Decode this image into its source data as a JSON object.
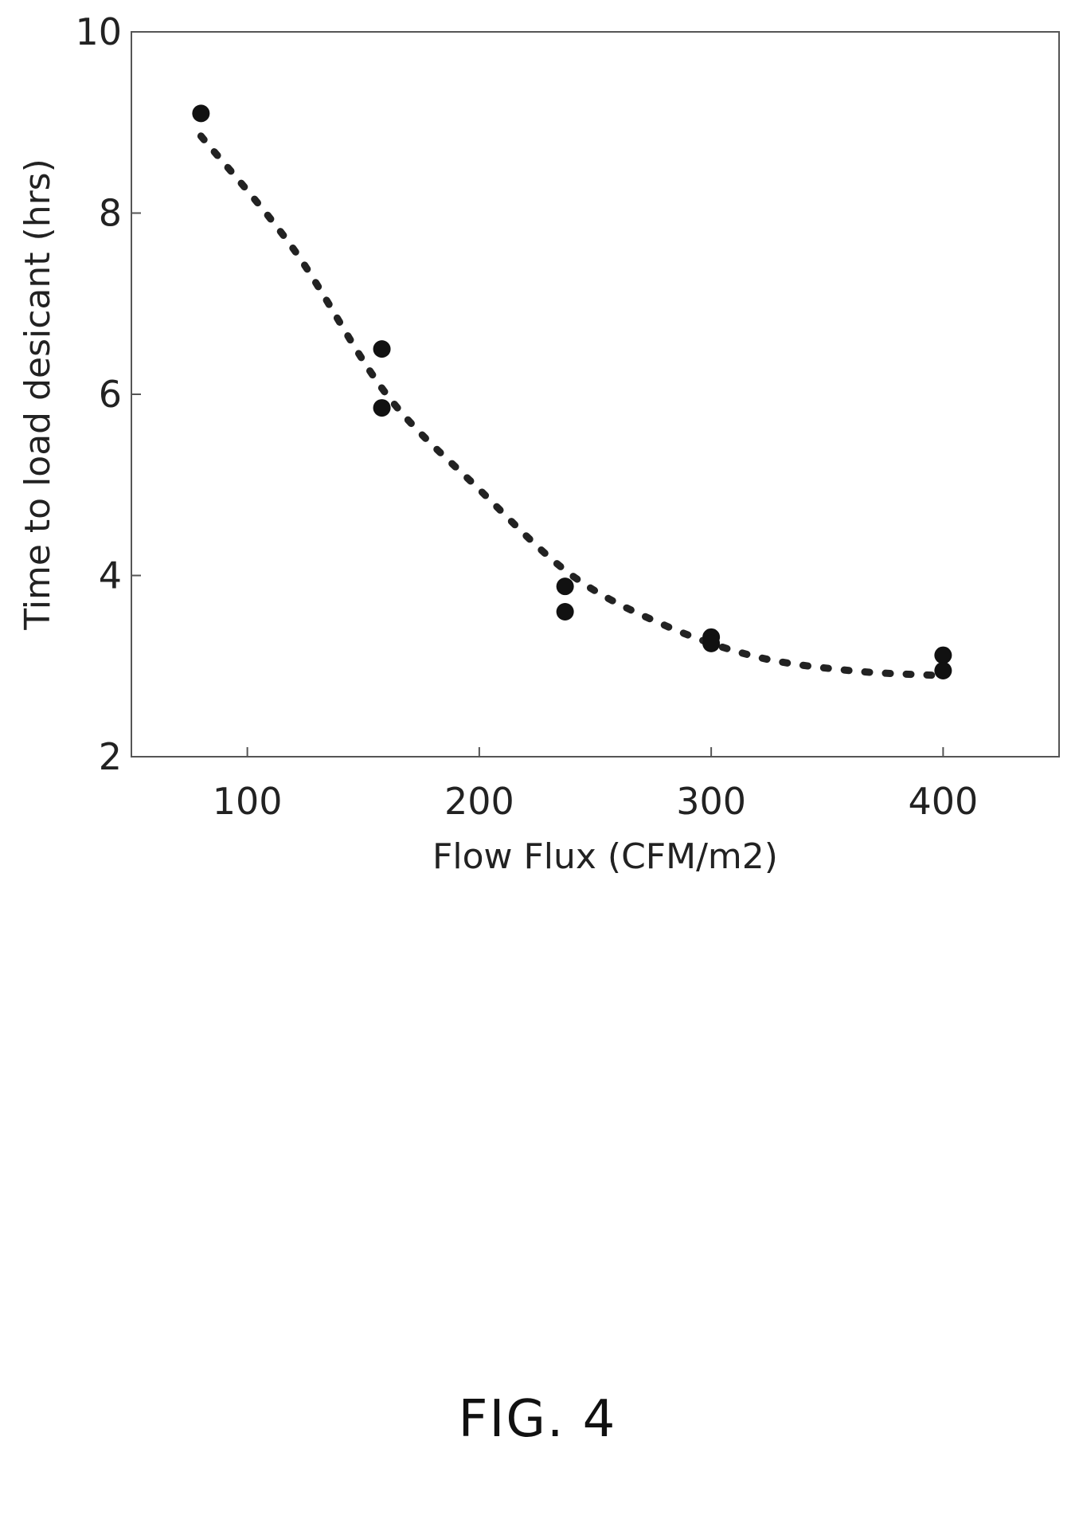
{
  "figure": {
    "caption": "FIG. 4"
  },
  "chart_data": {
    "type": "scatter",
    "title": "",
    "xlabel": "Flow Flux (CFM/m2)",
    "ylabel": "Time to load desicant (hrs)",
    "xlim": [
      50,
      450
    ],
    "ylim": [
      2,
      10
    ],
    "xticks": [
      100,
      200,
      300,
      400
    ],
    "yticks": [
      2,
      4,
      6,
      8,
      10
    ],
    "grid": false,
    "series": [
      {
        "points": [
          {
            "x": 80,
            "y": 9.1
          },
          {
            "x": 158,
            "y": 6.5
          },
          {
            "x": 158,
            "y": 5.85
          },
          {
            "x": 237,
            "y": 3.88
          },
          {
            "x": 237,
            "y": 3.6
          },
          {
            "x": 300,
            "y": 3.32
          },
          {
            "x": 300,
            "y": 3.25
          },
          {
            "x": 400,
            "y": 3.12
          },
          {
            "x": 400,
            "y": 2.95
          }
        ]
      }
    ],
    "trendline": {
      "style": "dashed",
      "points": [
        {
          "x": 80,
          "y": 8.85
        },
        {
          "x": 120,
          "y": 7.6
        },
        {
          "x": 160,
          "y": 6.0
        },
        {
          "x": 200,
          "y": 4.95
        },
        {
          "x": 240,
          "y": 4.0
        },
        {
          "x": 280,
          "y": 3.45
        },
        {
          "x": 320,
          "y": 3.1
        },
        {
          "x": 360,
          "y": 2.95
        },
        {
          "x": 395,
          "y": 2.9
        }
      ]
    }
  }
}
